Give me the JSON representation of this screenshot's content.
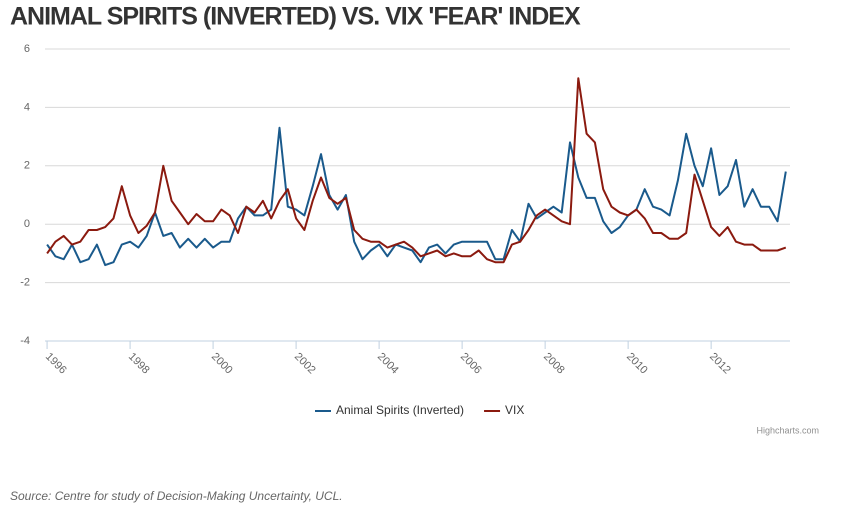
{
  "chart_data": {
    "type": "line",
    "title": "ANIMAL SPIRITS (INVERTED) VS. VIX 'FEAR' INDEX",
    "x": [
      1996.0,
      1996.2,
      1996.4,
      1996.6,
      1996.8,
      1997.0,
      1997.2,
      1997.4,
      1997.6,
      1997.8,
      1998.0,
      1998.2,
      1998.4,
      1998.6,
      1998.8,
      1999.0,
      1999.2,
      1999.4,
      1999.6,
      1999.8,
      2000.0,
      2000.2,
      2000.4,
      2000.6,
      2000.8,
      2001.0,
      2001.2,
      2001.4,
      2001.6,
      2001.8,
      2002.0,
      2002.2,
      2002.4,
      2002.6,
      2002.8,
      2003.0,
      2003.2,
      2003.4,
      2003.6,
      2003.8,
      2004.0,
      2004.2,
      2004.4,
      2004.6,
      2004.8,
      2005.0,
      2005.2,
      2005.4,
      2005.6,
      2005.8,
      2006.0,
      2006.2,
      2006.4,
      2006.6,
      2006.8,
      2007.0,
      2007.2,
      2007.4,
      2007.6,
      2007.8,
      2008.0,
      2008.2,
      2008.4,
      2008.6,
      2008.8,
      2009.0,
      2009.2,
      2009.4,
      2009.6,
      2009.8,
      2010.0,
      2010.2,
      2010.4,
      2010.6,
      2010.8,
      2011.0,
      2011.2,
      2011.4,
      2011.6,
      2011.8,
      2012.0,
      2012.2,
      2012.4,
      2012.6,
      2012.8,
      2013.0,
      2013.2,
      2013.4,
      2013.6,
      2013.8
    ],
    "series": [
      {
        "name": "Animal Spirits (Inverted)",
        "color": "#1a5a8c",
        "values": [
          -0.7,
          -1.1,
          -1.2,
          -0.7,
          -1.3,
          -1.2,
          -0.7,
          -1.4,
          -1.3,
          -0.7,
          -0.6,
          -0.8,
          -0.4,
          0.4,
          -0.4,
          -0.3,
          -0.8,
          -0.5,
          -0.8,
          -0.5,
          -0.8,
          -0.6,
          -0.6,
          0.2,
          0.6,
          0.3,
          0.3,
          0.5,
          3.3,
          0.6,
          0.5,
          0.3,
          1.3,
          2.4,
          1.0,
          0.5,
          1.0,
          -0.6,
          -1.2,
          -0.9,
          -0.7,
          -1.1,
          -0.7,
          -0.8,
          -0.9,
          -1.3,
          -0.8,
          -0.7,
          -1.0,
          -0.7,
          -0.6,
          -0.6,
          -0.6,
          -0.6,
          -1.2,
          -1.2,
          -0.2,
          -0.6,
          0.7,
          0.2,
          0.4,
          0.6,
          0.4,
          2.8,
          1.6,
          0.9,
          0.9,
          0.1,
          -0.3,
          -0.1,
          0.3,
          0.5,
          1.2,
          0.6,
          0.5,
          0.3,
          1.5,
          3.1,
          2.0,
          1.3,
          2.6,
          1.0,
          1.3,
          2.2,
          0.6,
          1.2,
          0.6,
          0.6,
          0.1,
          1.8
        ]
      },
      {
        "name": "VIX",
        "color": "#8b1a0f",
        "values": [
          -1.0,
          -0.6,
          -0.4,
          -0.7,
          -0.6,
          -0.2,
          -0.2,
          -0.1,
          0.2,
          1.3,
          0.3,
          -0.3,
          -0.05,
          0.4,
          2.0,
          0.8,
          0.4,
          0.0,
          0.35,
          0.1,
          0.1,
          0.5,
          0.3,
          -0.3,
          0.6,
          0.4,
          0.8,
          0.2,
          0.8,
          1.2,
          0.2,
          -0.2,
          0.8,
          1.6,
          0.9,
          0.7,
          0.9,
          -0.2,
          -0.5,
          -0.6,
          -0.6,
          -0.8,
          -0.7,
          -0.6,
          -0.8,
          -1.1,
          -1.0,
          -0.9,
          -1.1,
          -1.0,
          -1.1,
          -1.1,
          -0.9,
          -1.2,
          -1.3,
          -1.3,
          -0.7,
          -0.6,
          -0.2,
          0.3,
          0.5,
          0.3,
          0.1,
          0.0,
          5.0,
          3.1,
          2.8,
          1.2,
          0.6,
          0.4,
          0.3,
          0.5,
          0.2,
          -0.3,
          -0.3,
          -0.5,
          -0.5,
          -0.3,
          1.7,
          0.8,
          -0.1,
          -0.4,
          -0.1,
          -0.6,
          -0.7,
          -0.7,
          -0.9,
          -0.9,
          -0.9,
          -0.8
        ]
      }
    ],
    "xlim": [
      1995.95,
      2013.9
    ],
    "xticks": [
      1996,
      1998,
      2000,
      2002,
      2004,
      2006,
      2008,
      2010,
      2012
    ],
    "ylim": [
      -4,
      6
    ],
    "yticks": [
      -4,
      -2,
      0,
      2,
      4,
      6
    ],
    "grid": true,
    "legend": "bottom",
    "credits": "Highcharts.com",
    "source": "Source: Centre for study of Decision-Making Uncertainty, UCL."
  }
}
